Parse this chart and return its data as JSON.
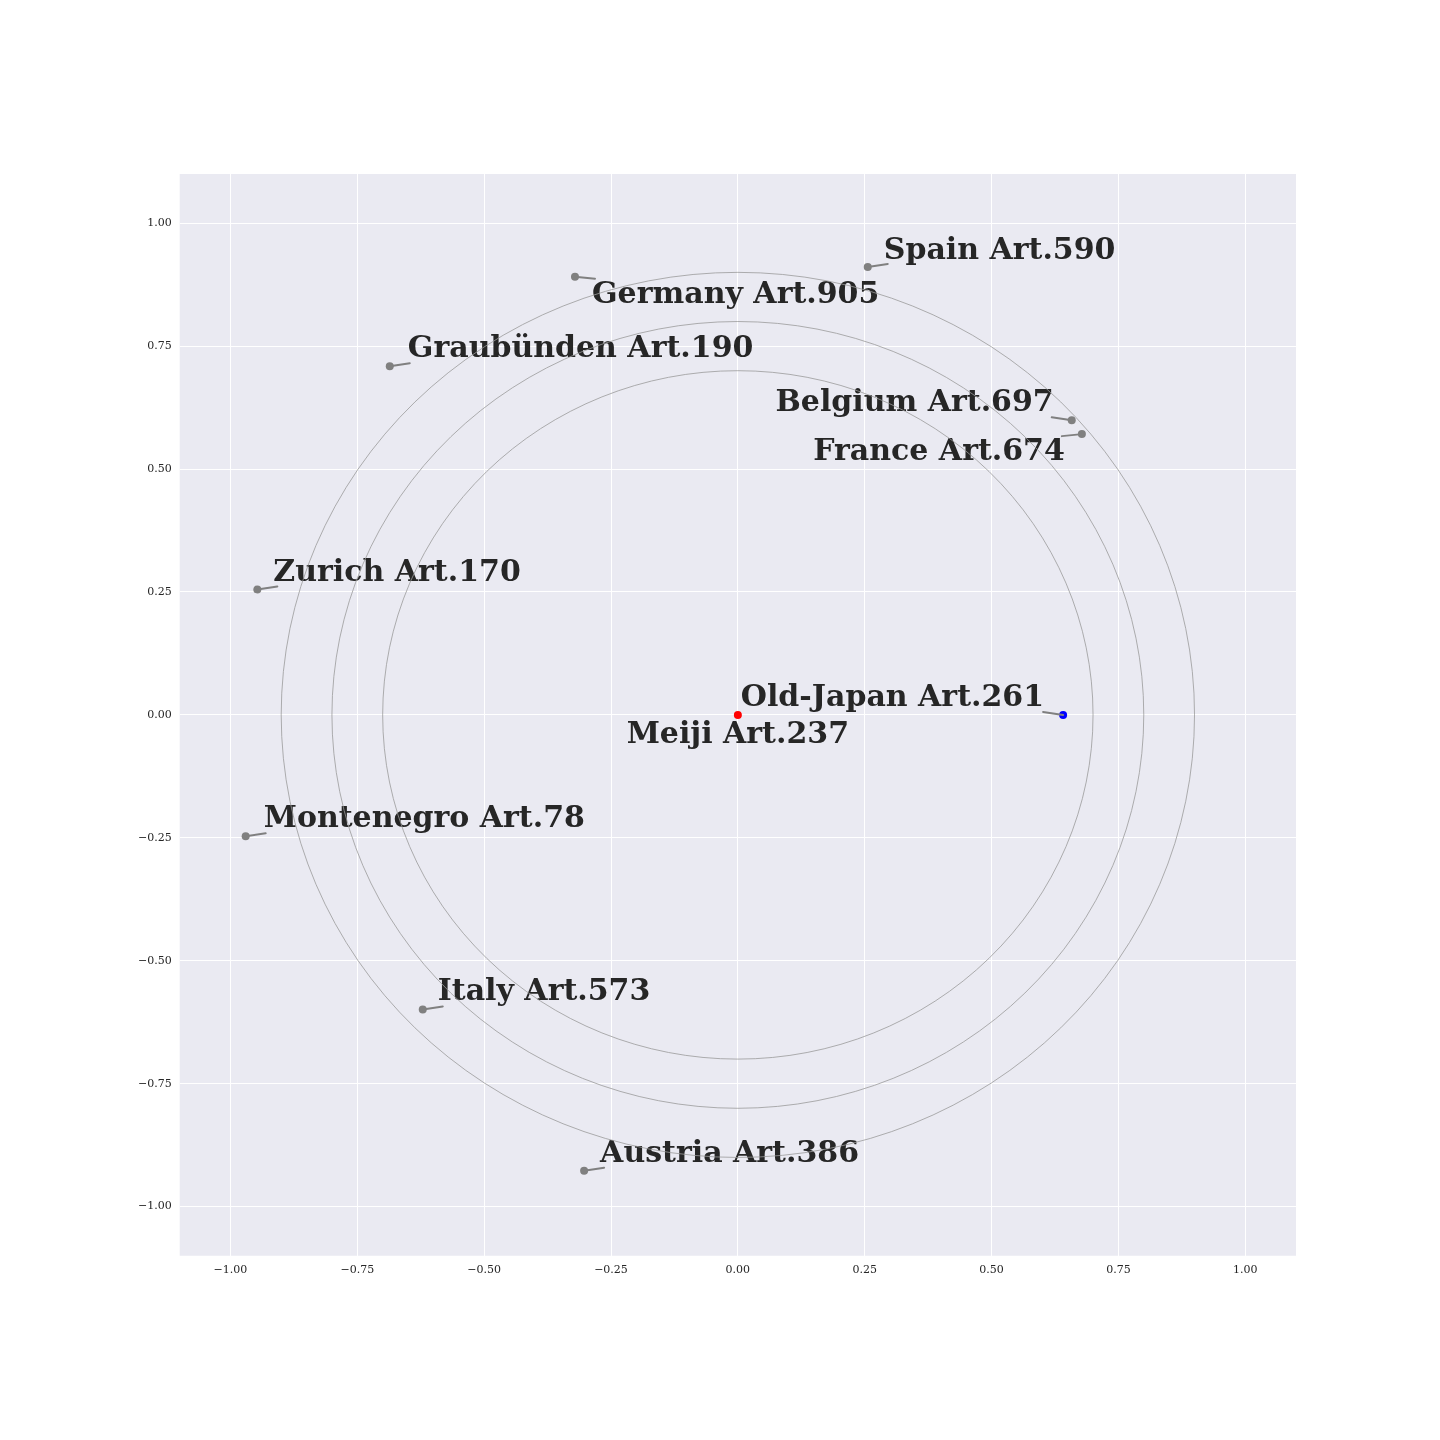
{
  "chart_data": {
    "type": "scatter",
    "xlim": [
      -1.1,
      1.1
    ],
    "ylim": [
      -1.1,
      1.1
    ],
    "xticks": [
      {
        "value": -1,
        "label": "−1.00"
      },
      {
        "value": -0.75,
        "label": "−0.75"
      },
      {
        "value": -0.5,
        "label": "−0.50"
      },
      {
        "value": -0.25,
        "label": "−0.25"
      },
      {
        "value": 0,
        "label": "0.00"
      },
      {
        "value": 0.25,
        "label": "0.25"
      },
      {
        "value": 0.5,
        "label": "0.50"
      },
      {
        "value": 0.75,
        "label": "0.75"
      },
      {
        "value": 1,
        "label": "1.00"
      }
    ],
    "yticks": [
      {
        "value": -1,
        "label": "−1.00"
      },
      {
        "value": -0.75,
        "label": "−0.75"
      },
      {
        "value": -0.5,
        "label": "−0.50"
      },
      {
        "value": -0.25,
        "label": "−0.25"
      },
      {
        "value": 0,
        "label": "0.00"
      },
      {
        "value": 0.25,
        "label": "0.25"
      },
      {
        "value": 0.5,
        "label": "0.50"
      },
      {
        "value": 0.75,
        "label": "0.75"
      },
      {
        "value": 1,
        "label": "1.00"
      }
    ],
    "grid": true,
    "series": [
      {
        "marker": "circle",
        "colors": [
          "#808080",
          "#808080",
          "#808080",
          "#808080",
          "#808080",
          "#808080",
          "#0000ff",
          "#ff0000",
          "#808080",
          "#808080",
          "#808080"
        ],
        "x": [
          0.256,
          -0.321,
          -0.686,
          0.658,
          0.678,
          -0.947,
          0.641,
          0,
          -0.97,
          -0.621,
          -0.303
        ],
        "values": [
          0.911,
          0.891,
          0.709,
          0.599,
          0.571,
          0.255,
          0,
          0,
          -0.247,
          -0.599,
          -0.927
        ]
      }
    ],
    "annotations": [
      {
        "text": "Spain Art.590",
        "x": 0.256,
        "y": 0.911
      },
      {
        "text": "Germany Art.905",
        "x": -0.321,
        "y": 0.891
      },
      {
        "text": "Graubünden Art.190",
        "x": -0.686,
        "y": 0.709
      },
      {
        "text": "Belgium Art.697",
        "x": 0.658,
        "y": 0.599
      },
      {
        "text": "France Art.674",
        "x": 0.678,
        "y": 0.571
      },
      {
        "text": "Zurich Art.170",
        "x": -0.947,
        "y": 0.255
      },
      {
        "text": "Old-Japan Art.261",
        "x": 0.641,
        "y": 0
      },
      {
        "text": "Meiji Art.237",
        "x": 0,
        "y": 0
      },
      {
        "text": "Montenegro Art.78",
        "x": -0.97,
        "y": -0.247
      },
      {
        "text": "Italy Art.573",
        "x": -0.621,
        "y": -0.599
      },
      {
        "text": "Austria Art.386",
        "x": -0.303,
        "y": -0.927
      }
    ]
  }
}
